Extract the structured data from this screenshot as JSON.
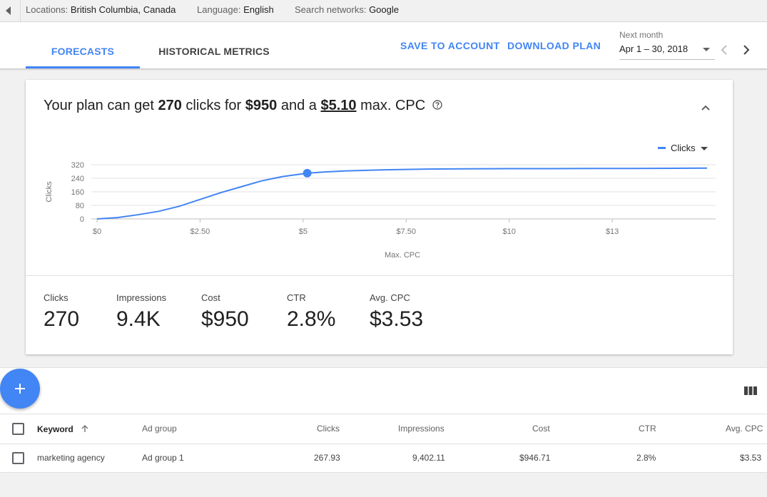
{
  "filters": [
    {
      "label": "Locations:",
      "value": "British Columbia, Canada"
    },
    {
      "label": "Language:",
      "value": "English"
    },
    {
      "label": "Search networks:",
      "value": "Google"
    }
  ],
  "tabs": {
    "forecasts": "FORECASTS",
    "historical": "HISTORICAL METRICS"
  },
  "actions": {
    "save": "SAVE TO ACCOUNT",
    "download": "DOWNLOAD PLAN"
  },
  "date_range": {
    "label": "Next month",
    "value": "Apr 1 – 30, 2018"
  },
  "summary": {
    "p1": "Your plan can get ",
    "clicks": "270",
    "p2": " clicks for ",
    "cost": "$950",
    "p3": " and a ",
    "cpc": "$5.10",
    "p4": " max. CPC"
  },
  "legend": {
    "label": "Clicks"
  },
  "chart_data": {
    "type": "line",
    "title": "",
    "xlabel": "Max. CPC",
    "ylabel": "Clicks",
    "x_ticks": [
      "$0",
      "$2.50",
      "$5",
      "$7.50",
      "$10",
      "$13"
    ],
    "x_tick_values": [
      0,
      2.5,
      5,
      7.5,
      10,
      12.5
    ],
    "y_ticks": [
      "320",
      "240",
      "160",
      "80",
      "0"
    ],
    "y_tick_values": [
      320,
      240,
      160,
      80,
      0
    ],
    "xlim": [
      0,
      14.8
    ],
    "ylim": [
      0,
      320
    ],
    "grid": true,
    "legend_position": "top-right",
    "color": "#4285f4",
    "series": [
      {
        "name": "Clicks",
        "x": [
          0,
          0.5,
          1.0,
          1.5,
          2.0,
          2.5,
          3.0,
          3.5,
          4.0,
          4.5,
          5.1,
          5.5,
          6.0,
          7.0,
          8.0,
          9.0,
          10.0,
          11.0,
          12.0,
          13.0,
          14.0,
          14.8
        ],
        "y": [
          0,
          8,
          25,
          45,
          75,
          115,
          155,
          190,
          225,
          250,
          270,
          277,
          283,
          290,
          294,
          296,
          297,
          297,
          298,
          298,
          299,
          300
        ]
      }
    ],
    "highlight": {
      "x": 5.1,
      "y": 270
    }
  },
  "metrics": [
    {
      "label": "Clicks",
      "value": "270"
    },
    {
      "label": "Impressions",
      "value": "9.4K"
    },
    {
      "label": "Cost",
      "value": "$950"
    },
    {
      "label": "CTR",
      "value": "2.8%"
    },
    {
      "label": "Avg. CPC",
      "value": "$3.53"
    }
  ],
  "table": {
    "headers": [
      "Keyword",
      "Ad group",
      "Clicks",
      "Impressions",
      "Cost",
      "CTR",
      "Avg. CPC"
    ],
    "rows": [
      [
        "marketing agency",
        "Ad group 1",
        "267.93",
        "9,402.11",
        "$946.71",
        "2.8%",
        "$3.53"
      ]
    ]
  }
}
